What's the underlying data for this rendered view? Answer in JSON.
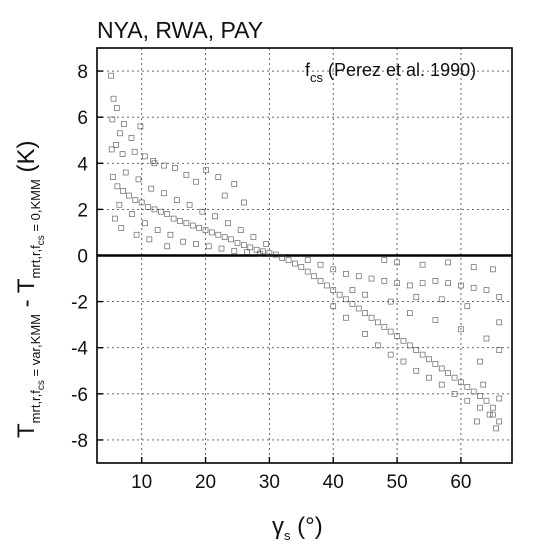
{
  "chart_data": {
    "type": "scatter",
    "title": "NYA, RWA, PAY",
    "annotation": {
      "main": "f",
      "sub": "cs",
      "rest": " (Perez et al. 1990)"
    },
    "xlabel": {
      "main": "γ",
      "sub": "s",
      "rest": " (°)"
    },
    "ylabel": {
      "main1": "T",
      "sub1": "mrt,r,f",
      "subsub1": "cs",
      "sub1b": " = var,KMM",
      "mid": " - T",
      "sub2": "mrt,r,f",
      "subsub2": "cs",
      "sub2b": " = 0,KMM",
      "rest": " (K)"
    },
    "xlim": [
      3,
      68
    ],
    "ylim": [
      -9,
      9
    ],
    "xticks": [
      10,
      20,
      30,
      40,
      50,
      60
    ],
    "yticks": [
      -8,
      -6,
      -4,
      -2,
      0,
      2,
      4,
      6,
      8
    ],
    "xtick_labels": [
      "10",
      "20",
      "30",
      "40",
      "50",
      "60"
    ],
    "ytick_labels": [
      "-8",
      "-6",
      "-4",
      "-2",
      "0",
      "2",
      "4",
      "6",
      "8"
    ],
    "grid": true,
    "marker": "open-square",
    "series": [
      {
        "points": [
          [
            5.2,
            7.8
          ],
          [
            5.6,
            6.8
          ],
          [
            6.1,
            6.4
          ],
          [
            5.4,
            5.9
          ],
          [
            7.2,
            5.7
          ],
          [
            9.8,
            5.6
          ],
          [
            6.6,
            5.3
          ],
          [
            8.4,
            5.1
          ],
          [
            5.3,
            4.6
          ],
          [
            6.0,
            4.8
          ],
          [
            7.0,
            4.4
          ],
          [
            8.9,
            4.5
          ],
          [
            10.5,
            4.3
          ],
          [
            12.0,
            4.0
          ],
          [
            13.5,
            3.9
          ],
          [
            15.2,
            3.8
          ],
          [
            11.8,
            4.1
          ],
          [
            17.0,
            3.5
          ],
          [
            20.1,
            3.7
          ],
          [
            18.5,
            3.2
          ],
          [
            22.0,
            3.4
          ],
          [
            24.5,
            3.1
          ],
          [
            26.0,
            2.3
          ],
          [
            23.0,
            2.6
          ],
          [
            5.5,
            3.4
          ],
          [
            6.2,
            3.0
          ],
          [
            7.1,
            2.8
          ],
          [
            8.0,
            2.6
          ],
          [
            9.0,
            2.4
          ],
          [
            10.0,
            2.3
          ],
          [
            11.0,
            2.1
          ],
          [
            12.0,
            2.0
          ],
          [
            13.0,
            1.9
          ],
          [
            14.0,
            1.8
          ],
          [
            15.0,
            1.6
          ],
          [
            16.0,
            1.5
          ],
          [
            17.0,
            1.4
          ],
          [
            18.0,
            1.3
          ],
          [
            19.0,
            1.2
          ],
          [
            20.0,
            1.1
          ],
          [
            21.0,
            1.0
          ],
          [
            22.0,
            0.9
          ],
          [
            23.0,
            0.8
          ],
          [
            24.0,
            0.7
          ],
          [
            25.0,
            0.55
          ],
          [
            26.0,
            0.45
          ],
          [
            27.0,
            0.35
          ],
          [
            28.0,
            0.25
          ],
          [
            29.0,
            0.18
          ],
          [
            30.0,
            0.1
          ],
          [
            31.0,
            0.04
          ],
          [
            6.5,
            2.2
          ],
          [
            8.5,
            1.8
          ],
          [
            10.5,
            1.4
          ],
          [
            12.5,
            1.1
          ],
          [
            14.5,
            0.9
          ],
          [
            16.5,
            0.6
          ],
          [
            18.5,
            0.5
          ],
          [
            20.5,
            0.4
          ],
          [
            22.5,
            0.3
          ],
          [
            24.5,
            0.2
          ],
          [
            26.5,
            0.15
          ],
          [
            28.5,
            0.08
          ],
          [
            7.5,
            3.6
          ],
          [
            9.5,
            3.3
          ],
          [
            11.5,
            2.9
          ],
          [
            13.5,
            2.7
          ],
          [
            15.5,
            2.4
          ],
          [
            17.5,
            2.2
          ],
          [
            19.5,
            1.9
          ],
          [
            21.5,
            1.7
          ],
          [
            23.5,
            1.4
          ],
          [
            25.5,
            1.1
          ],
          [
            27.5,
            0.8
          ],
          [
            29.5,
            0.5
          ],
          [
            6.8,
            1.2
          ],
          [
            9.2,
            0.9
          ],
          [
            11.2,
            0.7
          ],
          [
            14.0,
            0.4
          ],
          [
            5.8,
            1.6
          ],
          [
            32.0,
            -0.1
          ],
          [
            33.0,
            -0.2
          ],
          [
            34.0,
            -0.35
          ],
          [
            35.0,
            -0.5
          ],
          [
            36.0,
            -0.7
          ],
          [
            37.0,
            -0.9
          ],
          [
            38.0,
            -1.1
          ],
          [
            39.0,
            -1.3
          ],
          [
            40.0,
            -1.5
          ],
          [
            41.0,
            -1.7
          ],
          [
            42.0,
            -1.9
          ],
          [
            43.0,
            -2.1
          ],
          [
            44.0,
            -2.3
          ],
          [
            45.0,
            -2.5
          ],
          [
            46.0,
            -2.7
          ],
          [
            47.0,
            -2.9
          ],
          [
            48.0,
            -3.1
          ],
          [
            49.0,
            -3.3
          ],
          [
            50.0,
            -3.5
          ],
          [
            51.0,
            -3.7
          ],
          [
            52.0,
            -3.9
          ],
          [
            53.0,
            -4.1
          ],
          [
            54.0,
            -4.3
          ],
          [
            55.0,
            -4.5
          ],
          [
            56.0,
            -4.7
          ],
          [
            57.0,
            -4.9
          ],
          [
            58.0,
            -5.1
          ],
          [
            59.0,
            -5.3
          ],
          [
            60.0,
            -5.5
          ],
          [
            61.0,
            -5.7
          ],
          [
            62.0,
            -5.9
          ],
          [
            63.0,
            -6.1
          ],
          [
            64.0,
            -6.3
          ],
          [
            65.0,
            -6.6
          ],
          [
            66.0,
            -7.2
          ],
          [
            65.5,
            -7.5
          ],
          [
            64.5,
            -6.9
          ],
          [
            62.5,
            -7.2
          ],
          [
            66.0,
            -6.2
          ],
          [
            63.5,
            -5.6
          ],
          [
            36.0,
            -0.2
          ],
          [
            38.0,
            -0.4
          ],
          [
            40.0,
            -0.6
          ],
          [
            42.0,
            -0.8
          ],
          [
            44.0,
            -0.9
          ],
          [
            46.0,
            -1.0
          ],
          [
            48.0,
            -1.1
          ],
          [
            50.0,
            -1.2
          ],
          [
            52.0,
            -1.3
          ],
          [
            54.0,
            -1.2
          ],
          [
            56.0,
            -1.1
          ],
          [
            58.0,
            -1.2
          ],
          [
            60.0,
            -1.3
          ],
          [
            62.0,
            -1.4
          ],
          [
            64.0,
            -1.5
          ],
          [
            66.0,
            -1.8
          ],
          [
            45.0,
            -3.4
          ],
          [
            47.0,
            -3.9
          ],
          [
            49.0,
            -4.3
          ],
          [
            51.0,
            -4.6
          ],
          [
            53.0,
            -5.0
          ],
          [
            55.0,
            -5.3
          ],
          [
            57.0,
            -5.6
          ],
          [
            59.0,
            -6.0
          ],
          [
            61.0,
            -6.3
          ],
          [
            63.0,
            -6.6
          ],
          [
            65.0,
            -6.9
          ],
          [
            42.0,
            -2.7
          ],
          [
            40.0,
            -2.2
          ],
          [
            52.0,
            -2.5
          ],
          [
            56.0,
            -2.8
          ],
          [
            60.0,
            -3.2
          ],
          [
            64.0,
            -3.6
          ],
          [
            66.0,
            -4.1
          ],
          [
            58.0,
            -0.3
          ],
          [
            62.0,
            -0.5
          ],
          [
            54.0,
            -0.4
          ],
          [
            50.0,
            -0.3
          ],
          [
            48.0,
            -0.2
          ],
          [
            65.0,
            -0.6
          ],
          [
            61.0,
            -2.2
          ],
          [
            57.0,
            -1.9
          ],
          [
            53.0,
            -1.8
          ],
          [
            49.0,
            -2.0
          ],
          [
            45.0,
            -1.7
          ],
          [
            43.0,
            -1.5
          ],
          [
            66.0,
            -2.9
          ],
          [
            63.0,
            -4.6
          ]
        ]
      }
    ]
  }
}
